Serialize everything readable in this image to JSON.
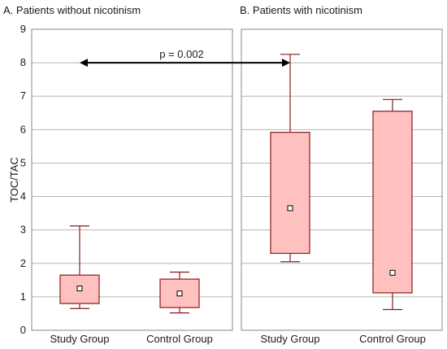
{
  "chart_data": {
    "type": "box",
    "ylabel": "TOC/TAC",
    "ylim": [
      0,
      9
    ],
    "yticks": [
      0,
      1,
      2,
      3,
      4,
      5,
      6,
      7,
      8,
      9
    ],
    "grid": true,
    "colors": {
      "box_fill": "#ffc0c0",
      "box_stroke": "#8b1a1a",
      "grid": "#b5b5b5",
      "frame": "#888888",
      "arrow": "#000000"
    },
    "panels": [
      {
        "title": "A. Patients without nicotinism",
        "groups": [
          {
            "name": "Study Group",
            "min": 0.65,
            "q1": 0.8,
            "median": 1.25,
            "q3": 1.65,
            "max": 3.12
          },
          {
            "name": "Control Group",
            "min": 0.52,
            "q1": 0.68,
            "median": 1.1,
            "q3": 1.53,
            "max": 1.74
          }
        ]
      },
      {
        "title": "B. Patients with nicotinism",
        "groups": [
          {
            "name": "Study Group",
            "min": 2.05,
            "q1": 2.3,
            "median": 3.65,
            "q3": 5.92,
            "max": 8.25
          },
          {
            "name": "Control Group",
            "min": 0.62,
            "q1": 1.12,
            "median": 1.72,
            "q3": 6.55,
            "max": 6.9
          }
        ]
      }
    ],
    "annotation": {
      "label": "p = 0.002",
      "y": 8,
      "from": "A. Study Group",
      "to": "B. Study Group"
    }
  }
}
